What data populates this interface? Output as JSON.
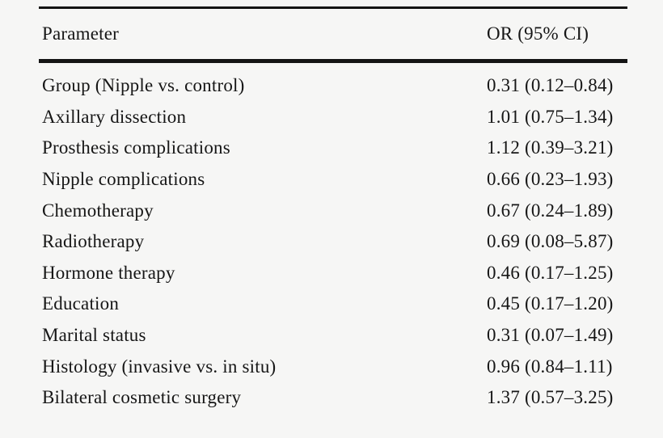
{
  "page": {
    "background": "#f6f6f5",
    "text_color": "#161616",
    "rule_color": "#141414"
  },
  "table": {
    "columns": [
      {
        "label": "Parameter"
      },
      {
        "label": "OR (95% CI)"
      }
    ],
    "rows": [
      {
        "parameter": "Group (Nipple vs. control)",
        "or_ci": "0.31 (0.12–0.84)"
      },
      {
        "parameter": "Axillary dissection",
        "or_ci": "1.01 (0.75–1.34)"
      },
      {
        "parameter": "Prosthesis complications",
        "or_ci": "1.12 (0.39–3.21)"
      },
      {
        "parameter": "Nipple complications",
        "or_ci": "0.66 (0.23–1.93)"
      },
      {
        "parameter": "Chemotherapy",
        "or_ci": "0.67 (0.24–1.89)"
      },
      {
        "parameter": "Radiotherapy",
        "or_ci": "0.69 (0.08–5.87)"
      },
      {
        "parameter": "Hormone therapy",
        "or_ci": "0.46 (0.17–1.25)"
      },
      {
        "parameter": "Education",
        "or_ci": "0.45 (0.17–1.20)"
      },
      {
        "parameter": "Marital status",
        "or_ci": "0.31 (0.07–1.49)"
      },
      {
        "parameter": "Histology (invasive vs. in situ)",
        "or_ci": "0.96 (0.84–1.11)"
      },
      {
        "parameter": "Bilateral cosmetic surgery",
        "or_ci": "1.37 (0.57–3.25)"
      }
    ]
  }
}
